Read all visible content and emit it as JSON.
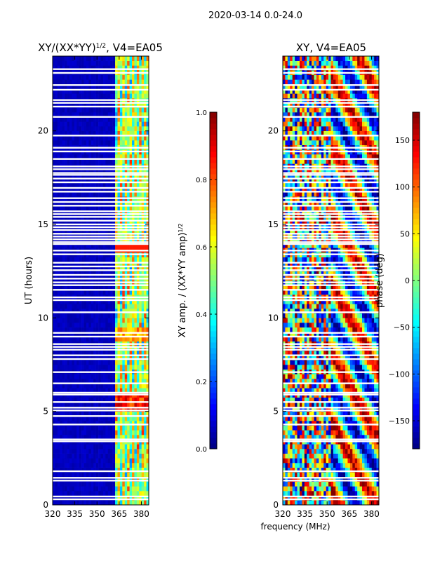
{
  "suptitle": "2020-03-14 0.0-24.0",
  "chart_data": [
    {
      "type": "heatmap",
      "title_main": "XY/(XX*YY)",
      "title_sup": "1/2",
      "title_tail": ", V4=EA05",
      "xlabel": "",
      "ylabel": "UT (hours)",
      "xlim": [
        320,
        385
      ],
      "ylim": [
        0,
        24
      ],
      "xticks": [
        "320",
        "335",
        "350",
        "365",
        "380"
      ],
      "xtick_values": [
        320,
        335,
        350,
        365,
        380
      ],
      "yticks": [
        "0",
        "5",
        "10",
        "15",
        "20"
      ],
      "ytick_values": [
        0,
        5,
        10,
        15,
        20
      ],
      "colormap": "jet",
      "colorbar": {
        "label_main": "XY amp. / (XX*YY amp)",
        "label_sup": "1/2",
        "range": [
          0.0,
          1.0
        ],
        "ticks": [
          "0.0",
          "0.2",
          "0.4",
          "0.6",
          "0.8",
          "1.0"
        ],
        "tick_values": [
          0.0,
          0.2,
          0.4,
          0.6,
          0.8,
          1.0
        ]
      },
      "bright_band_start_mhz": 363
    },
    {
      "type": "heatmap",
      "title_main": "XY, V4=EA05",
      "xlabel": "frequency (MHz)",
      "ylabel": "",
      "xlim": [
        320,
        385
      ],
      "ylim": [
        0,
        24
      ],
      "xticks": [
        "320",
        "335",
        "350",
        "365",
        "380"
      ],
      "xtick_values": [
        320,
        335,
        350,
        365,
        380
      ],
      "yticks": [
        "0",
        "5",
        "10",
        "15",
        "20"
      ],
      "ytick_values": [
        0,
        5,
        10,
        15,
        20
      ],
      "colormap": "jet",
      "colorbar": {
        "label": "phase (deg)",
        "range": [
          -180,
          180
        ],
        "ticks": [
          "−150",
          "−100",
          "−50",
          "0",
          "50",
          "100",
          "150"
        ],
        "tick_values": [
          -150,
          -100,
          -50,
          0,
          50,
          100,
          150
        ]
      }
    }
  ],
  "flagged_hours": [
    0.3,
    0.45,
    1.3,
    1.45,
    1.8,
    3.4,
    3.5,
    4.3,
    4.75,
    5.05,
    5.2,
    5.5,
    5.9,
    6.0,
    6.5,
    7.1,
    7.8,
    8.0,
    8.3,
    8.45,
    8.6,
    9.0,
    9.2,
    10.3,
    10.95,
    11.1,
    11.5,
    11.75,
    11.9,
    12.1,
    12.3,
    12.55,
    12.75,
    12.95,
    13.4,
    13.6,
    13.95,
    14.05,
    14.2,
    14.35,
    14.5,
    14.7,
    14.85,
    15.0,
    15.2,
    15.4,
    15.55,
    15.7,
    16.0,
    16.2,
    16.4,
    16.75,
    16.95,
    17.25,
    17.45,
    17.65,
    17.75,
    17.95,
    18.1,
    18.5,
    18.9,
    19.1,
    19.75,
    20.75,
    21.3,
    21.5,
    21.65,
    22.2,
    22.45,
    23.1,
    23.3
  ]
}
